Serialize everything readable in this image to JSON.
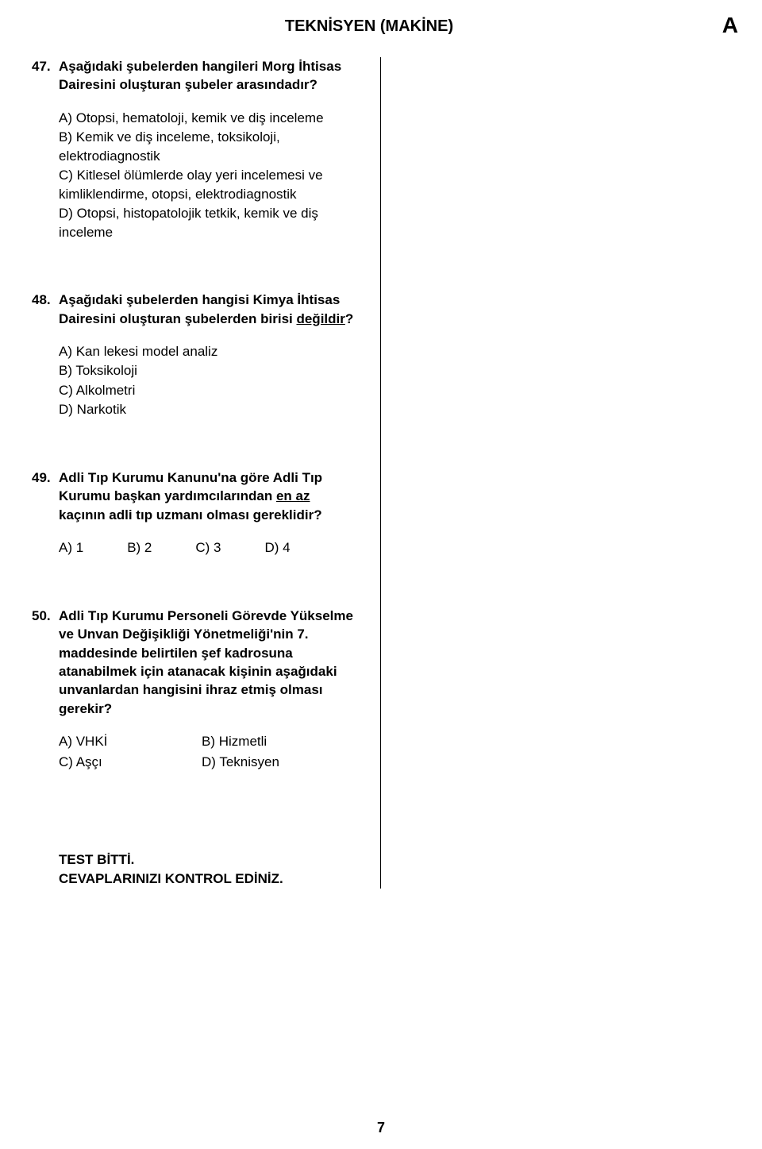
{
  "header": {
    "title": "TEKNİSYEN (MAKİNE)",
    "booklet": "A"
  },
  "questions": {
    "q47": {
      "num": "47.",
      "stem": "Aşağıdaki şubelerden hangileri Morg İhtisas Dairesini oluşturan şubeler arasındadır?",
      "a": "A) Otopsi, hematoloji, kemik ve diş inceleme",
      "b": "B) Kemik ve diş inceleme, toksikoloji, elektrodiagnostik",
      "c": "C) Kitlesel ölümlerde olay yeri incelemesi ve kimliklendirme, otopsi, elektrodiagnostik",
      "d": "D) Otopsi, histopatolojik tetkik, kemik ve diş inceleme"
    },
    "q48": {
      "num": "48.",
      "stem_pre": "Aşağıdaki şubelerden hangisi Kimya İhtisas Dairesini oluşturan şubelerden birisi ",
      "stem_underline": "değildir",
      "stem_post": "?",
      "a": "A) Kan lekesi model analiz",
      "b": "B) Toksikoloji",
      "c": "C) Alkolmetri",
      "d": "D) Narkotik"
    },
    "q49": {
      "num": "49.",
      "stem_pre": "Adli Tıp Kurumu Kanunu'na göre Adli Tıp Kurumu başkan yardımcılarından ",
      "stem_underline": "en az",
      "stem_post": " kaçının adli tıp uzmanı olması gereklidir?",
      "a": "A) 1",
      "b": "B) 2",
      "c": "C) 3",
      "d": "D) 4"
    },
    "q50": {
      "num": "50.",
      "stem": "Adli Tıp Kurumu Personeli Görevde Yükselme ve Unvan Değişikliği Yönetmeliği'nin 7. maddesinde belirtilen şef kadrosuna atanabilmek için atanacak kişinin aşağıdaki unvanlardan hangisini ihraz etmiş olması gerekir?",
      "a": "A) VHKİ",
      "b": "B) Hizmetli",
      "c": "C) Aşçı",
      "d": "D) Teknisyen"
    }
  },
  "footer": {
    "line1": "TEST BİTTİ.",
    "line2": "CEVAPLARINIZI KONTROL EDİNİZ."
  },
  "page_number": "7"
}
